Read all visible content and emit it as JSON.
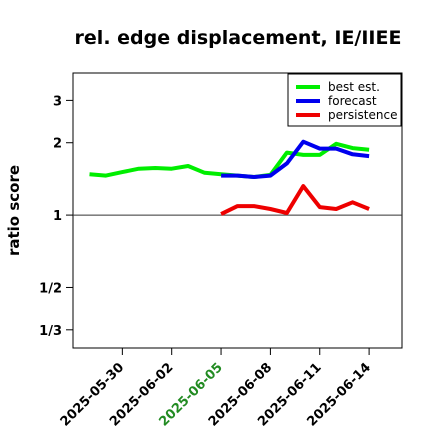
{
  "chart_data": {
    "type": "line",
    "title": "rel. edge displacement, IE/IIEE",
    "ylabel": "ratio score",
    "xlabel": "",
    "y_scale": "log",
    "ylim": [
      0.28,
      3.9
    ],
    "xlim": [
      "2025-05-27",
      "2025-06-16"
    ],
    "y_ticks": [
      {
        "value": 0.3333,
        "label": "1/3"
      },
      {
        "value": 0.5,
        "label": "1/2"
      },
      {
        "value": 1,
        "label": "1"
      },
      {
        "value": 2,
        "label": "2"
      },
      {
        "value": 3,
        "label": "3"
      }
    ],
    "x_ticks": [
      {
        "date": "2025-05-30",
        "label": "2025-05-30",
        "color": "#000000"
      },
      {
        "date": "2025-06-02",
        "label": "2025-06-02",
        "color": "#000000"
      },
      {
        "date": "2025-06-05",
        "label": "2025-06-05",
        "color": "#228B22"
      },
      {
        "date": "2025-06-08",
        "label": "2025-06-08",
        "color": "#000000"
      },
      {
        "date": "2025-06-11",
        "label": "2025-06-11",
        "color": "#000000"
      },
      {
        "date": "2025-06-14",
        "label": "2025-06-14",
        "color": "#000000"
      }
    ],
    "reference_line": 1,
    "legend_position": "top-right",
    "series": [
      {
        "name": "best est.",
        "color": "#00ee00",
        "points": [
          [
            "2025-05-28",
            1.48
          ],
          [
            "2025-05-29",
            1.46
          ],
          [
            "2025-05-30",
            1.51
          ],
          [
            "2025-05-31",
            1.56
          ],
          [
            "2025-06-01",
            1.57
          ],
          [
            "2025-06-02",
            1.56
          ],
          [
            "2025-06-03",
            1.6
          ],
          [
            "2025-06-04",
            1.5
          ],
          [
            "2025-06-05",
            1.48
          ],
          [
            "2025-06-06",
            1.46
          ],
          [
            "2025-06-07",
            1.44
          ],
          [
            "2025-06-08",
            1.47
          ],
          [
            "2025-06-09",
            1.82
          ],
          [
            "2025-06-10",
            1.78
          ],
          [
            "2025-06-11",
            1.78
          ],
          [
            "2025-06-12",
            1.98
          ],
          [
            "2025-06-13",
            1.9
          ],
          [
            "2025-06-14",
            1.87
          ]
        ]
      },
      {
        "name": "forecast",
        "color": "#0000ee",
        "points": [
          [
            "2025-06-05",
            1.46
          ],
          [
            "2025-06-06",
            1.46
          ],
          [
            "2025-06-07",
            1.44
          ],
          [
            "2025-06-08",
            1.46
          ],
          [
            "2025-06-09",
            1.64
          ],
          [
            "2025-06-10",
            2.02
          ],
          [
            "2025-06-11",
            1.89
          ],
          [
            "2025-06-12",
            1.89
          ],
          [
            "2025-06-13",
            1.79
          ],
          [
            "2025-06-14",
            1.76
          ]
        ]
      },
      {
        "name": "persistence",
        "color": "#ee0000",
        "points": [
          [
            "2025-06-05",
            1.01
          ],
          [
            "2025-06-06",
            1.09
          ],
          [
            "2025-06-07",
            1.09
          ],
          [
            "2025-06-08",
            1.06
          ],
          [
            "2025-06-09",
            1.02
          ],
          [
            "2025-06-10",
            1.32
          ],
          [
            "2025-06-11",
            1.08
          ],
          [
            "2025-06-12",
            1.06
          ],
          [
            "2025-06-13",
            1.13
          ],
          [
            "2025-06-14",
            1.06
          ]
        ]
      }
    ]
  }
}
